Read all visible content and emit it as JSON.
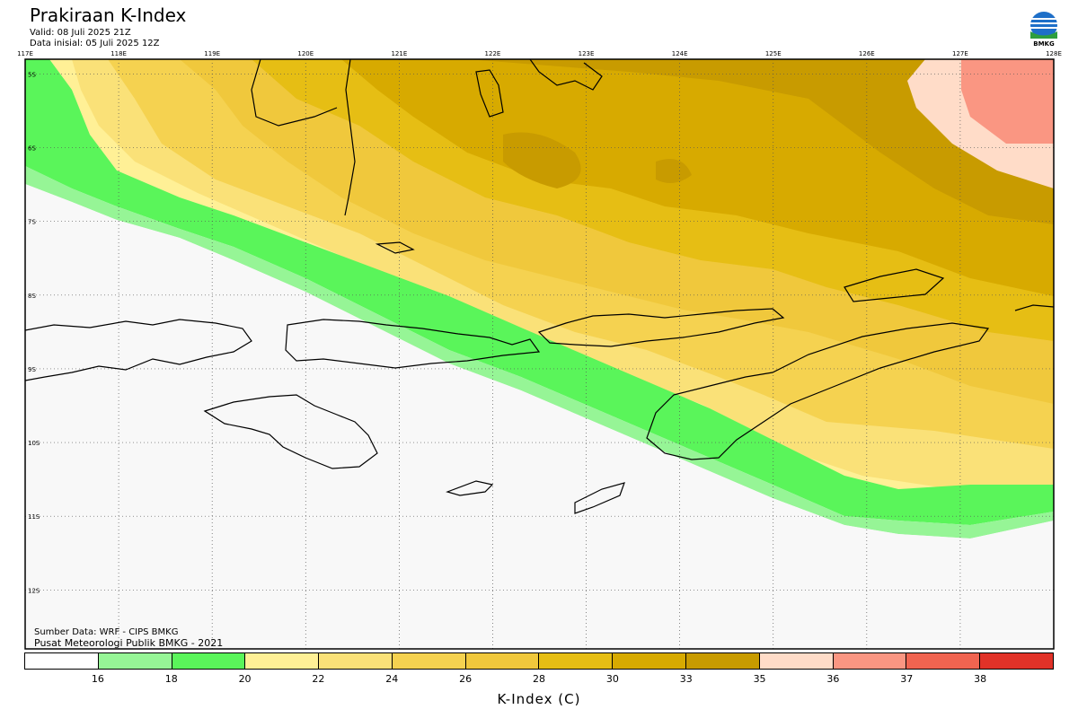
{
  "header": {
    "title": "Prakiraan K-Index",
    "valid": "Valid: 08 Juli 2025 21Z",
    "initial": "Data inisial: 05 Juli 2025 12Z"
  },
  "logo": {
    "text": "BMKG"
  },
  "map": {
    "lon_labels": [
      "117E",
      "118E",
      "119E",
      "120E",
      "121E",
      "122E",
      "123E",
      "124E",
      "125E",
      "126E",
      "127E",
      "128E"
    ],
    "lat_labels": [
      "5S",
      "6S",
      "7S",
      "8S",
      "9S",
      "10S",
      "11S",
      "12S"
    ],
    "lon_range": [
      117,
      128
    ],
    "lat_range": [
      -4.8,
      -12.8
    ]
  },
  "source": {
    "line1": "Sumber Data: WRF - CIPS BMKG",
    "line2": "Pusat Meteorologi Publik BMKG - 2021"
  },
  "legend": {
    "colors": [
      "#ffffff",
      "#96f596",
      "#5af55a",
      "#fff096",
      "#fae178",
      "#f5d250",
      "#f0c83c",
      "#e6be14",
      "#d7aa00",
      "#c89b00",
      "#ffdcc8",
      "#fa9682",
      "#f06450",
      "#e13228"
    ],
    "ticks": [
      "16",
      "18",
      "20",
      "22",
      "24",
      "26",
      "28",
      "30",
      "33",
      "35",
      "36",
      "37",
      "38"
    ],
    "title": "K-Index (C)"
  }
}
